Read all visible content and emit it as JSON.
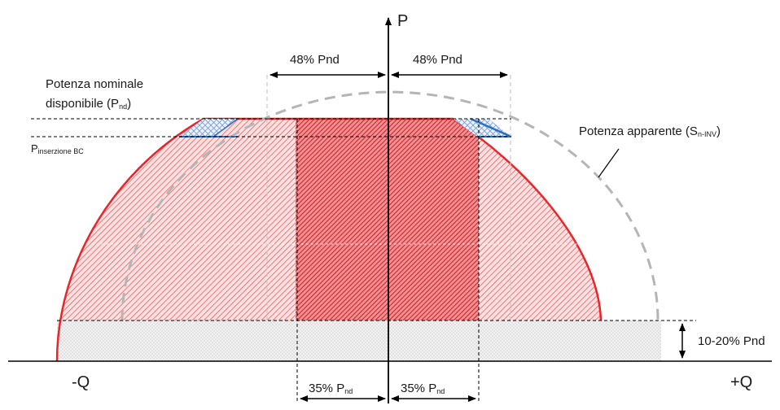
{
  "axes": {
    "p_label": "P",
    "neg_q_label": "-Q",
    "pos_q_label": "+Q"
  },
  "labels": {
    "nominal_line1": "Potenza nominale",
    "nominal_line2": "disponibile (P",
    "nominal_sub": "nd",
    "nominal_close": ")",
    "insertion_main": "P",
    "insertion_sub": "inserzione BC",
    "apparent_main": "Potenza apparente (S",
    "apparent_sub": "n-INV",
    "apparent_close": ")",
    "dim_48_left": "48% Pnd",
    "dim_48_right": "48% Pnd",
    "dim_35_main": "35% P",
    "dim_35_sub": "nd",
    "dim_1020": "10-20% Pnd"
  },
  "colors": {
    "red": "#e8262a",
    "light_red": "#f6a5a5",
    "dark_hatch": "#c4141a",
    "grey_dash": "#b5b5b5",
    "blue": "#2a6fc4",
    "black": "#000000"
  }
}
